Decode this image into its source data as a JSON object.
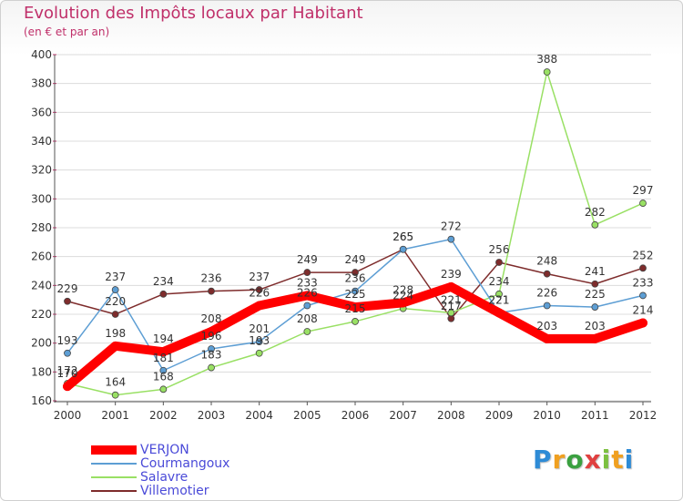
{
  "chart_data": {
    "type": "line",
    "title": "Evolution des Impôts locaux par Habitant",
    "subtitle": "(en € et par an)",
    "xlabel": "",
    "ylabel": "",
    "ylim": [
      160,
      400
    ],
    "yticks": [
      160,
      180,
      200,
      220,
      240,
      260,
      280,
      300,
      320,
      340,
      360,
      380,
      400
    ],
    "categories": [
      "2000",
      "2001",
      "2002",
      "2003",
      "2004",
      "2005",
      "2006",
      "2007",
      "2008",
      "2009",
      "2010",
      "2011",
      "2012"
    ],
    "series": [
      {
        "name": "VERJON",
        "color": "#ff0000",
        "values": [
          170,
          198,
          194,
          208,
          226,
          233,
          225,
          228,
          239,
          221,
          203,
          203,
          214
        ]
      },
      {
        "name": "Courmangoux",
        "color": "#5d9ed4",
        "values": [
          193,
          237,
          181,
          196,
          201,
          226,
          236,
          265,
          272,
          221,
          226,
          225,
          233
        ]
      },
      {
        "name": "Salavre",
        "color": "#99e064",
        "values": [
          172,
          164,
          168,
          183,
          193,
          208,
          215,
          224,
          221,
          234,
          388,
          282,
          297
        ]
      },
      {
        "name": "Villemotier",
        "color": "#7e2c2c",
        "values": [
          229,
          220,
          234,
          236,
          237,
          249,
          249,
          265,
          217,
          256,
          248,
          241,
          252
        ]
      }
    ],
    "legend_position": "bottom-left"
  },
  "logo": {
    "letters": [
      "P",
      "r",
      "o",
      "x",
      "i",
      "t",
      "i"
    ],
    "colors": [
      "#2e8bd6",
      "#f0a020",
      "#3aa040",
      "#e04040",
      "#7cc040",
      "#f0a020",
      "#2e8bd6"
    ]
  }
}
